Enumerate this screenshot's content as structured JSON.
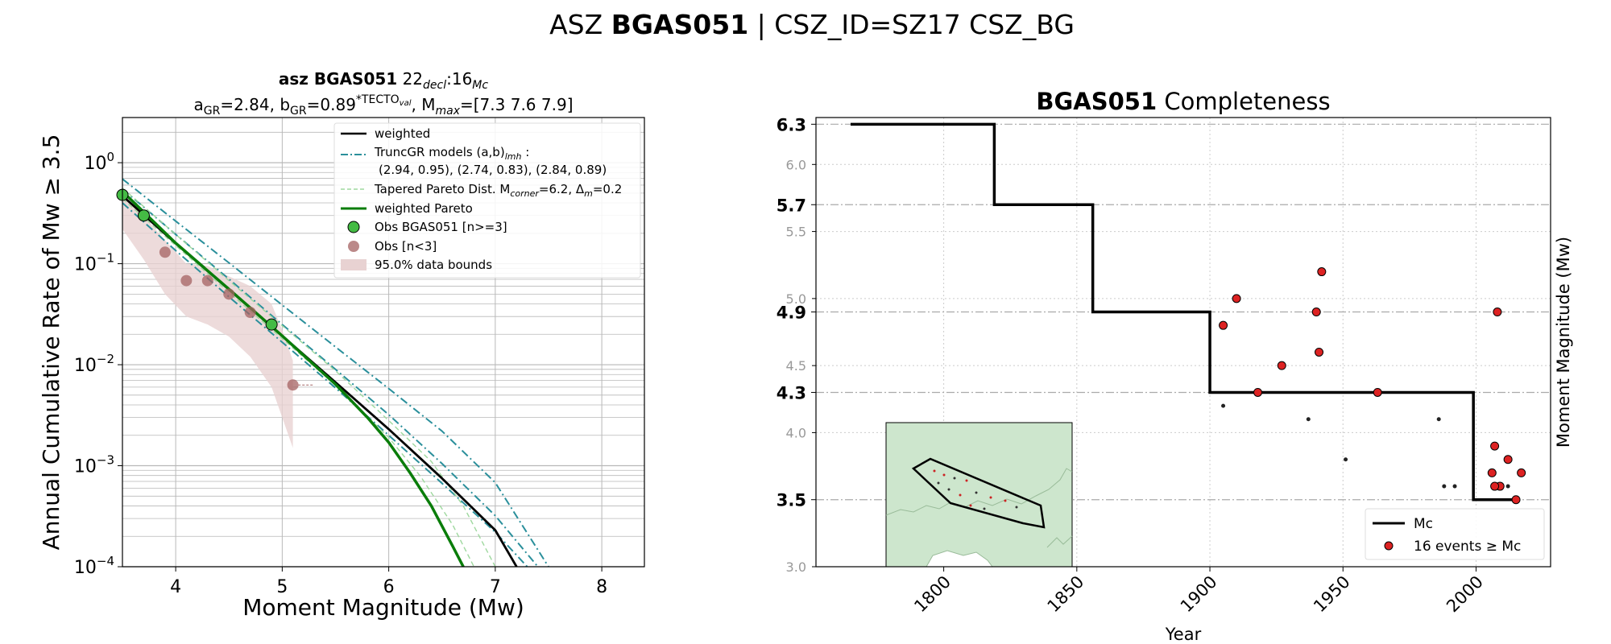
{
  "suptitle": {
    "prefix": "ASZ ",
    "bold": "BGAS051",
    "suffix": " | CSZ_ID=SZ17 CSZ_BG"
  },
  "left_title": {
    "line1_bold": "asz BGAS051",
    "line1_num": "22",
    "line1_sub1": "decl",
    "line1_mid": ":16",
    "line1_sub2": "Mc",
    "line2_a": "a",
    "line2_a_sub": "GR",
    "line2_a_val": "=2.84,  ",
    "line2_b": "b",
    "line2_b_sub": "GR",
    "line2_b_val": "=0.89",
    "line2_sup": "*TECTO",
    "line2_sup_sub": "val",
    "line2_mmax": ", M",
    "line2_mmax_sub": "max",
    "line2_mmax_val": "=[7.3 7.6 7.9]"
  },
  "right_title": {
    "bold": "BGAS051",
    "rest": " Completeness"
  },
  "legend_left": {
    "weighted": "weighted",
    "truncgr": "TruncGR models (a,b)",
    "truncgr_sub": "lmh",
    "truncgr_colon": " :",
    "truncgr_vals": "(2.94, 0.95), (2.74, 0.83), (2.84, 0.89)",
    "tapered": "Tapered Pareto Dist. M",
    "tapered_sub": "corner",
    "tapered_mid": "=6.2, Δ",
    "tapered_sub2": "m",
    "tapered_end": "=0.2",
    "weighted_pareto": "weighted Pareto",
    "obs_main": "Obs BGAS051 [n>=3]",
    "obs_lt3": "Obs [n<3]",
    "bounds": "95.0% data bounds"
  },
  "legend_right": {
    "mc": "Mc",
    "events": "16 events ≥ Mc"
  },
  "colors": {
    "weighted": "#000000",
    "truncgr": "#2a8f9b",
    "tapered": "#9ed89e",
    "weighted_pareto": "#0a7d0a",
    "obs_main": "#44bb44",
    "obs_lt3": "#a46262",
    "bounds": "#e8d2d2",
    "events": "#dd2222",
    "inset_fill": "#cde6cd"
  },
  "chart_data": [
    {
      "type": "line",
      "xlabel": "Moment Magnitude (Mw)",
      "ylabel": "Annual Cumulative Rate of Mw  ≥  3.5",
      "xlim": [
        3.5,
        8.4
      ],
      "ylim": [
        0.0001,
        2.8
      ],
      "yscale": "log",
      "xticks": [
        "4",
        "5",
        "6",
        "7",
        "8"
      ],
      "yticks": [
        {
          "base": "10",
          "exp": "0"
        },
        {
          "base": "10",
          "exp": "−1"
        },
        {
          "base": "10",
          "exp": "−2"
        },
        {
          "base": "10",
          "exp": "−3"
        },
        {
          "base": "10",
          "exp": "−4"
        }
      ],
      "grid": true,
      "legend_position": "top-right",
      "series": [
        {
          "name": "weighted",
          "kind": "line",
          "x": [
            3.5,
            4.0,
            4.5,
            5.0,
            5.5,
            6.0,
            6.5,
            7.0,
            7.2
          ],
          "y": [
            0.47,
            0.159,
            0.0555,
            0.0193,
            0.0067,
            0.0023,
            0.00075,
            0.00023,
            0.0001
          ]
        },
        {
          "name": "TruncGR models (a,b)lmh",
          "kind": "dashdot",
          "x": [
            3.5,
            4.0,
            4.5,
            5.0,
            5.5,
            6.0,
            6.5,
            7.0,
            7.3
          ],
          "y": [
            0.4,
            0.135,
            0.047,
            0.0167,
            0.0059,
            0.002,
            0.00067,
            0.00022,
            0.0001
          ]
        },
        {
          "name": "",
          "kind": "dashdot",
          "x": [
            3.5,
            4.0,
            4.5,
            5.0,
            5.5,
            6.0,
            6.5,
            7.0,
            7.5
          ],
          "y": [
            0.69,
            0.264,
            0.102,
            0.039,
            0.015,
            0.0058,
            0.0022,
            0.00068,
            0.0001
          ]
        },
        {
          "name": "",
          "kind": "dashdot",
          "x": [
            3.5,
            4.0,
            4.5,
            5.0,
            5.5,
            6.0,
            6.5,
            7.0,
            7.4
          ],
          "y": [
            0.55,
            0.195,
            0.0705,
            0.025,
            0.009,
            0.0032,
            0.00105,
            0.00032,
            0.0001
          ]
        },
        {
          "name": "Tapered Pareto Dist.",
          "kind": "dashed",
          "x": [
            3.5,
            4.5,
            5.5,
            6.0,
            6.3,
            6.6,
            6.8
          ],
          "y": [
            0.44,
            0.052,
            0.0063,
            0.0019,
            0.00078,
            0.00026,
            0.0001
          ]
        },
        {
          "name": "",
          "kind": "dashed",
          "x": [
            3.5,
            4.5,
            5.5,
            6.0,
            6.4,
            6.7,
            7.0
          ],
          "y": [
            0.56,
            0.068,
            0.0087,
            0.0028,
            0.0011,
            0.0004,
            0.0001
          ]
        },
        {
          "name": "weighted Pareto",
          "kind": "line",
          "x": [
            3.5,
            4.0,
            4.5,
            5.0,
            5.5,
            5.8,
            6.0,
            6.2,
            6.4,
            6.6,
            6.7
          ],
          "y": [
            0.52,
            0.16,
            0.056,
            0.0193,
            0.0064,
            0.003,
            0.0017,
            0.00085,
            0.0004,
            0.00016,
            0.0001
          ]
        }
      ],
      "obs_main": {
        "name": "Obs BGAS051 [n>=3]",
        "x": [
          3.5,
          3.7,
          4.9
        ],
        "y": [
          0.48,
          0.3,
          0.025
        ]
      },
      "obs_lt3": {
        "name": "Obs [n<3]",
        "x": [
          3.9,
          4.1,
          4.3,
          4.5,
          4.7,
          5.1
        ],
        "y": [
          0.13,
          0.068,
          0.068,
          0.05,
          0.033,
          0.0063
        ]
      },
      "bounds": {
        "name": "95.0% data bounds",
        "x": [
          3.5,
          3.7,
          3.9,
          4.1,
          4.3,
          4.5,
          4.7,
          4.9,
          5.0,
          5.1
        ],
        "lower": [
          0.22,
          0.11,
          0.05,
          0.03,
          0.025,
          0.019,
          0.012,
          0.006,
          0.003,
          0.0015
        ],
        "upper": [
          0.5,
          0.3,
          0.17,
          0.1,
          0.095,
          0.075,
          0.06,
          0.04,
          0.022,
          0.011
        ]
      }
    },
    {
      "type": "scatter",
      "xlabel": "Year",
      "ylabel": "Moment Magnitude (Mw)",
      "xlim": [
        1752,
        2028
      ],
      "ylim": [
        3.0,
        6.35
      ],
      "xticks": [
        "1800",
        "1850",
        "1900",
        "1950",
        "2000"
      ],
      "yticks_minor": [
        "3.0",
        "4.0",
        "4.5",
        "5.0",
        "5.5",
        "6.0"
      ],
      "yticks_major": [
        "3.5",
        "4.3",
        "4.9",
        "5.7",
        "6.3"
      ],
      "grid": true,
      "legend_position": "lower-right",
      "mc_step": {
        "x": [
          1765,
          1819,
          1819,
          1856,
          1856,
          1900,
          1900,
          1999,
          1999,
          2015
        ],
        "y": [
          6.3,
          6.3,
          5.7,
          5.7,
          4.9,
          4.9,
          4.3,
          4.3,
          3.5,
          3.5
        ]
      },
      "events": {
        "name": "16 events ≥ Mc",
        "x": [
          1905,
          1910,
          1918,
          1927,
          1940,
          1942,
          1941,
          1963,
          2008,
          2007,
          2012,
          2006,
          2009,
          2017,
          2015,
          2007
        ],
        "y": [
          4.8,
          5.0,
          4.3,
          4.5,
          4.9,
          5.2,
          4.6,
          4.3,
          4.9,
          3.9,
          3.8,
          3.7,
          3.6,
          3.7,
          3.5,
          3.6
        ]
      },
      "small_events": {
        "x": [
          1905,
          1937,
          1951,
          1986,
          1988,
          1992,
          2012
        ],
        "y": [
          4.2,
          4.1,
          3.8,
          4.1,
          3.6,
          3.6,
          3.6
        ]
      }
    }
  ]
}
